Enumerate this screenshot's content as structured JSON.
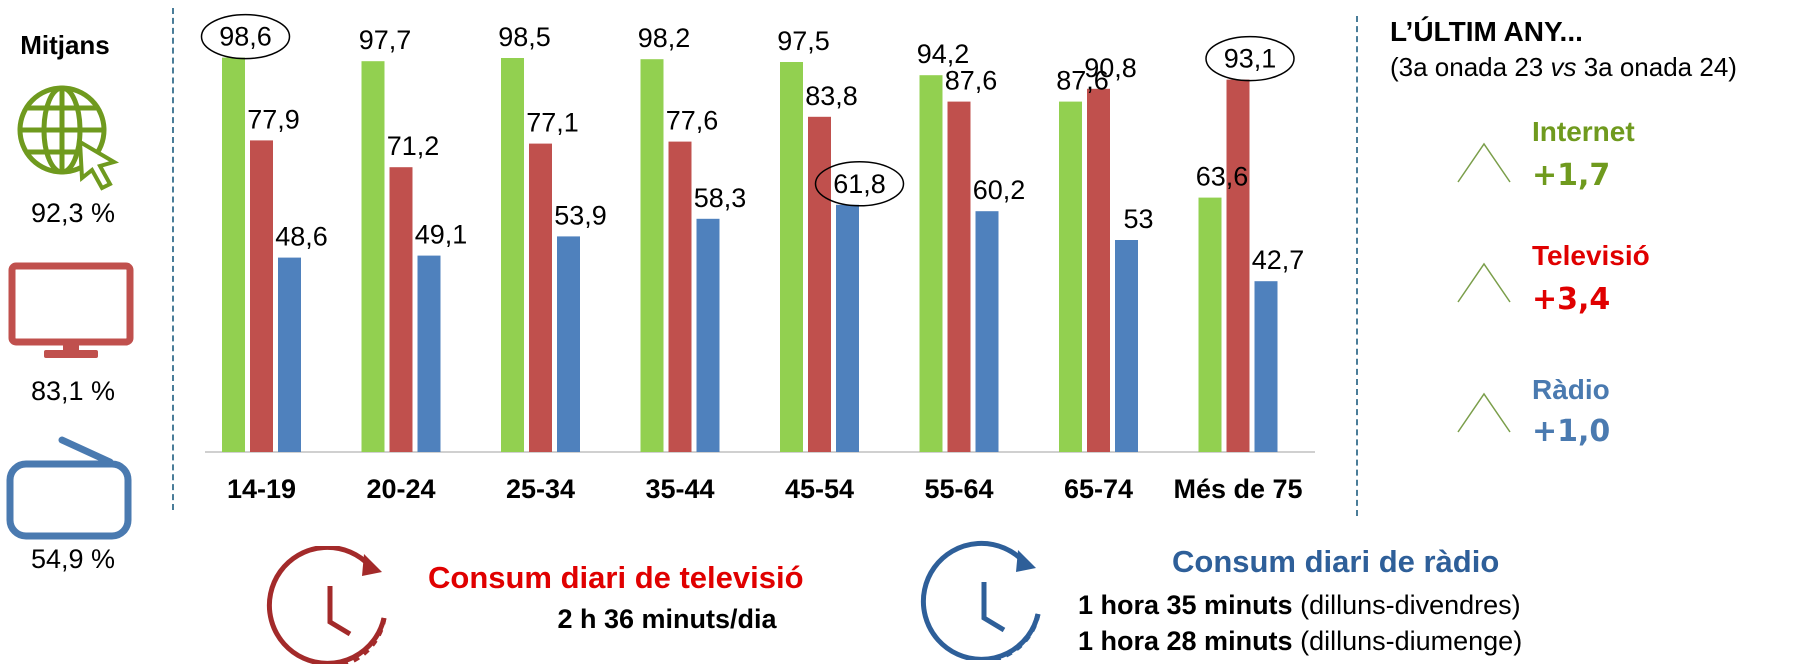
{
  "colors": {
    "internet": "#92d050",
    "tv": "#c0504d",
    "radio": "#4f81bd",
    "accent_internet": "#6f9a1e",
    "accent_tv": "#e00000",
    "accent_radio": "#4a7ab0",
    "clock_tv": "#a32a2a",
    "clock_radio": "#2e5f99",
    "dashed": "#4a7d99"
  },
  "media": {
    "title": "Mitjans",
    "items": [
      {
        "icon": "globe-cursor-icon",
        "value": "92,3 %"
      },
      {
        "icon": "tv-monitor-icon",
        "value": "83,1 %"
      },
      {
        "icon": "radio-icon",
        "value": "54,9 %"
      }
    ]
  },
  "chart_data": {
    "type": "bar",
    "categories": [
      "14-19",
      "20-24",
      "25-34",
      "35-44",
      "45-54",
      "55-64",
      "65-74",
      "Més de 75"
    ],
    "series": [
      {
        "key": "internet",
        "values": [
          98.6,
          97.7,
          98.5,
          98.2,
          97.5,
          94.2,
          87.6,
          63.6
        ],
        "labels": [
          "98,6",
          "97,7",
          "98,5",
          "98,2",
          "97,5",
          "94,2",
          "87,6",
          "63,6"
        ]
      },
      {
        "key": "tv",
        "values": [
          77.9,
          71.2,
          77.1,
          77.6,
          83.8,
          87.6,
          90.8,
          93.1
        ],
        "labels": [
          "77,9",
          "71,2",
          "77,1",
          "77,6",
          "83,8",
          "87,6",
          "90,8",
          "93,1"
        ]
      },
      {
        "key": "radio",
        "values": [
          48.6,
          49.1,
          53.9,
          58.3,
          61.8,
          60.2,
          53,
          42.7
        ],
        "labels": [
          "48,6",
          "49,1",
          "53,9",
          "58,3",
          "61,8",
          "60,2",
          "53",
          "42,7"
        ]
      }
    ],
    "ylim": [
      0,
      100
    ],
    "highlighted": [
      {
        "series": "internet",
        "index": 0
      },
      {
        "series": "radio",
        "index": 4
      },
      {
        "series": "tv",
        "index": 7
      }
    ],
    "grid": false
  },
  "right_panel": {
    "title": "L’ÚLTIM ANY...",
    "subtitle_pre": "(3a onada 23 ",
    "subtitle_em": "vs",
    "subtitle_post": " 3a onada 24)",
    "items": [
      {
        "icon": "up-triangle-icon",
        "name": "Internet",
        "change": "+1,7"
      },
      {
        "icon": "up-triangle-icon",
        "name": "Televisió",
        "change": "+3,4"
      },
      {
        "icon": "up-triangle-icon",
        "name": "Ràdio",
        "change": "+1,0"
      }
    ]
  },
  "bottom": {
    "tv": {
      "icon": "clock-icon",
      "title": "Consum diari de televisió",
      "line": "2 h 36 minuts/dia"
    },
    "radio": {
      "icon": "clock-icon",
      "title": "Consum diari de ràdio",
      "lines": [
        {
          "bold": "1 hora 35 minuts",
          "rest": " (dilluns-divendres)"
        },
        {
          "bold": "1 hora 28 minuts",
          "rest": " (dilluns-diumenge)"
        }
      ]
    }
  }
}
